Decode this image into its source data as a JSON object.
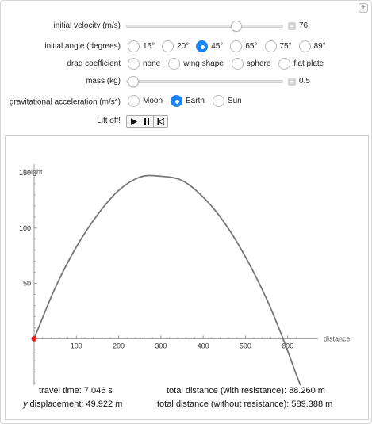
{
  "controls": {
    "velocity": {
      "label": "initial velocity (m/s)",
      "value": "76",
      "fraction": 0.72
    },
    "angle": {
      "label": "initial angle (degrees)",
      "options": [
        "15°",
        "20°",
        "45°",
        "65°",
        "75°",
        "89°"
      ],
      "selected": "45°"
    },
    "drag": {
      "label": "drag coefficient",
      "options": [
        "none",
        "wing shape",
        "sphere",
        "flat plate"
      ],
      "selected": ""
    },
    "mass": {
      "label": "mass (kg)",
      "value": "0.5",
      "fraction": 0.0
    },
    "gravity": {
      "label": "gravitational acceleration (m/s",
      "sup": "2",
      "label_end": ")",
      "options": [
        "Moon",
        "Earth",
        "Sun"
      ],
      "selected": "Earth"
    },
    "liftoff": {
      "label": "Lift off!",
      "buttons": [
        "play-icon",
        "pause-icon",
        "reset-icon"
      ]
    }
  },
  "chart_data": {
    "type": "line",
    "xlabel": "distance",
    "ylabel": "height",
    "x_ticks": [
      100,
      200,
      300,
      400,
      500,
      600
    ],
    "y_ticks": [
      50,
      100,
      150
    ],
    "xlim": [
      0,
      640
    ],
    "ylim": [
      -42,
      155
    ],
    "series": [
      {
        "x": [
          0,
          50,
          100,
          150,
          200,
          250,
          295,
          350,
          400,
          450,
          500,
          550,
          589,
          620,
          630
        ],
        "y": [
          0,
          46,
          83,
          112,
          134,
          146,
          147,
          143,
          128,
          105,
          74,
          36,
          0,
          -32,
          -42
        ]
      }
    ],
    "marker": {
      "x": 0,
      "y": 0,
      "color": "#e0201b"
    },
    "line_color": "#777777"
  },
  "results": {
    "travel_time": "travel time: 7.046 s",
    "y_disp_var": "y",
    "y_disp_rest": " displacement: 49.922 m",
    "dist_with": "total distance (with resistance): 88.260 m",
    "dist_without": "total distance (without resistance): 589.388 m"
  }
}
